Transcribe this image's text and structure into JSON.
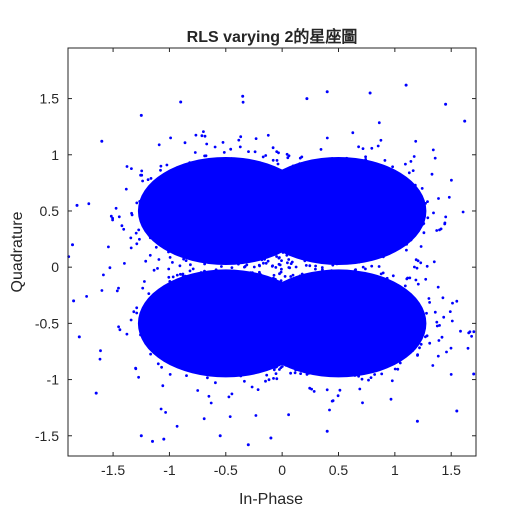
{
  "chart_data": {
    "type": "scatter",
    "title": "RLS varying 2的星座圖",
    "xlabel": "In-Phase",
    "ylabel": "Quadrature",
    "xlim": [
      -1.9,
      1.72
    ],
    "ylim": [
      -1.68,
      1.95
    ],
    "xticks": [
      -1.5,
      -1,
      -0.5,
      0,
      0.5,
      1,
      1.5
    ],
    "xtick_labels": [
      "-1.5",
      "-1",
      "-0.5",
      "0",
      "0.5",
      "1",
      "1.5"
    ],
    "yticks": [
      -1.5,
      -1,
      -0.5,
      0,
      0.5,
      1,
      1.5
    ],
    "ytick_labels": [
      "-1.5",
      "-1",
      "-0.5",
      "0",
      "0.5",
      "1",
      "1.5"
    ],
    "grid": false,
    "legend": "none",
    "marker_color": "#0000ff",
    "series": [
      {
        "distribution": "dense cloud of received symbols centred near the four QPSK points",
        "cluster_centers": [
          [
            -0.5,
            0.5
          ],
          [
            0.5,
            0.5
          ],
          [
            -0.5,
            -0.5
          ],
          [
            0.5,
            -0.5
          ]
        ],
        "cloud_extent_x": [
          -1.9,
          1.72
        ],
        "cloud_extent_y": [
          -1.58,
          1.62
        ],
        "outlier_points": [
          [
            1.1,
            1.62
          ],
          [
            0.4,
            1.56
          ],
          [
            0.78,
            1.55
          ],
          [
            -0.35,
            1.52
          ],
          [
            0.22,
            1.5
          ],
          [
            -0.9,
            1.47
          ],
          [
            1.45,
            1.45
          ],
          [
            -1.25,
            1.35
          ],
          [
            1.62,
            1.3
          ],
          [
            -1.6,
            1.12
          ],
          [
            -1.82,
            0.55
          ],
          [
            -1.86,
            0.2
          ],
          [
            -1.85,
            -0.3
          ],
          [
            -1.8,
            -0.62
          ],
          [
            1.7,
            -0.95
          ],
          [
            -1.65,
            -1.12
          ],
          [
            1.55,
            -1.28
          ],
          [
            -1.25,
            -1.5
          ],
          [
            -1.15,
            -1.55
          ],
          [
            -1.05,
            -1.53
          ],
          [
            -0.55,
            -1.5
          ],
          [
            -0.1,
            -1.52
          ],
          [
            -0.3,
            -1.58
          ],
          [
            0.4,
            -1.46
          ],
          [
            1.2,
            -1.37
          ]
        ]
      }
    ]
  }
}
